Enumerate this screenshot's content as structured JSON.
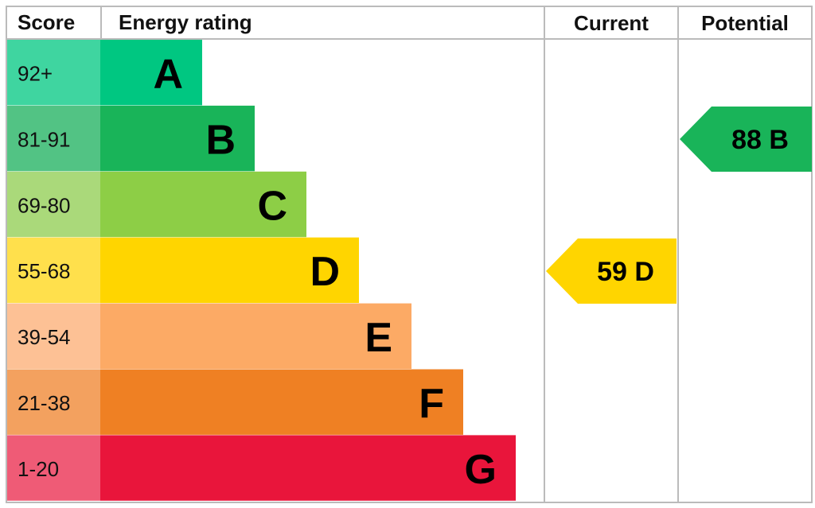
{
  "header": {
    "score": "Score",
    "energy_rating": "Energy rating",
    "current": "Current",
    "potential": "Potential"
  },
  "rows": [
    {
      "score": "92+",
      "band": "A",
      "color": "#00c781",
      "score_color": "#3fd5a0"
    },
    {
      "score": "81-91",
      "band": "B",
      "color": "#19b459",
      "score_color": "#52c384"
    },
    {
      "score": "69-80",
      "band": "C",
      "color": "#8dce46",
      "score_color": "#aad97a"
    },
    {
      "score": "55-68",
      "band": "D",
      "color": "#ffd500",
      "score_color": "#ffe04c"
    },
    {
      "score": "39-54",
      "band": "E",
      "color": "#fcaa65",
      "score_color": "#fdc195"
    },
    {
      "score": "21-38",
      "band": "F",
      "color": "#ef8023",
      "score_color": "#f3a15f"
    },
    {
      "score": "1-20",
      "band": "G",
      "color": "#e9153b",
      "score_color": "#ef5b76"
    }
  ],
  "current": {
    "label": "59 D",
    "color": "#ffd500"
  },
  "potential": {
    "label": "88 B",
    "color": "#19b459"
  }
}
